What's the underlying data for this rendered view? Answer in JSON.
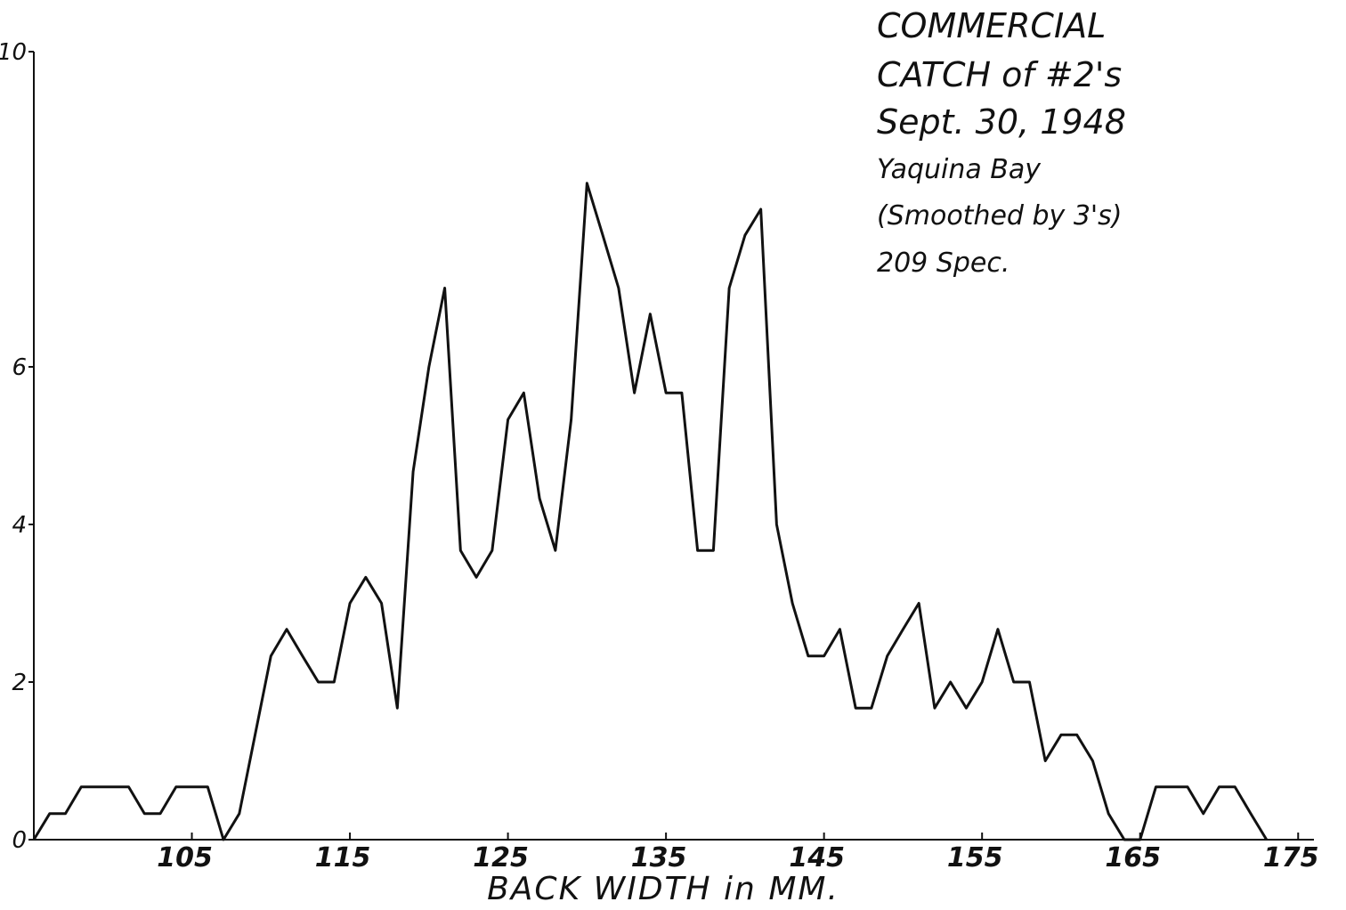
{
  "chart_data": {
    "type": "line",
    "x_label": "BACK WIDTH in MM.",
    "annotations": [
      "COMMERCIAL",
      "CATCH of #2's",
      "Sept. 30, 1948",
      "Yaquina Bay",
      "(Smoothed by 3's)",
      "209 Spec."
    ],
    "x": [
      95,
      96,
      97,
      98,
      99,
      100,
      101,
      102,
      103,
      104,
      105,
      106,
      107,
      108,
      109,
      110,
      111,
      112,
      113,
      114,
      115,
      116,
      117,
      118,
      119,
      120,
      121,
      122,
      123,
      124,
      125,
      126,
      127,
      128,
      129,
      130,
      131,
      132,
      133,
      134,
      135,
      136,
      137,
      138,
      139,
      140,
      141,
      142,
      143,
      144,
      145,
      146,
      147,
      148,
      149,
      150,
      151,
      152,
      153,
      154,
      155,
      156,
      157,
      158,
      159,
      160,
      161,
      162,
      163,
      164,
      165,
      166,
      167,
      168,
      169,
      170,
      171,
      172,
      173
    ],
    "series": [
      {
        "color": "#111111",
        "values": [
          0,
          0.33,
          0.33,
          0.67,
          0.67,
          0.67,
          0.67,
          0.33,
          0.33,
          0.67,
          0.67,
          0.67,
          0,
          0.33,
          1.33,
          2.33,
          2.67,
          2.33,
          2,
          2,
          3,
          3.33,
          3,
          1.67,
          4.67,
          6,
          7,
          3.67,
          3.33,
          3.67,
          5.33,
          5.67,
          4.33,
          3.67,
          5.33,
          8.33,
          7.67,
          7,
          5.67,
          6.67,
          5.67,
          5.67,
          3.67,
          3.67,
          7,
          7.67,
          8,
          4,
          3,
          2.33,
          2.33,
          2.67,
          1.67,
          1.67,
          2.33,
          2.67,
          3,
          1.67,
          2,
          1.67,
          2,
          2.67,
          2,
          2,
          1,
          1.33,
          1.33,
          1,
          0.33,
          0,
          0,
          0.67,
          0.67,
          0.67,
          0.33,
          0.67,
          0.67,
          0.33,
          0
        ]
      }
    ],
    "xlim": [
      95,
      176
    ],
    "ylim": [
      0,
      10
    ],
    "xticks": [
      105,
      115,
      125,
      135,
      145,
      155,
      165,
      175
    ],
    "yticks": [
      0,
      2,
      4,
      6,
      10
    ]
  }
}
